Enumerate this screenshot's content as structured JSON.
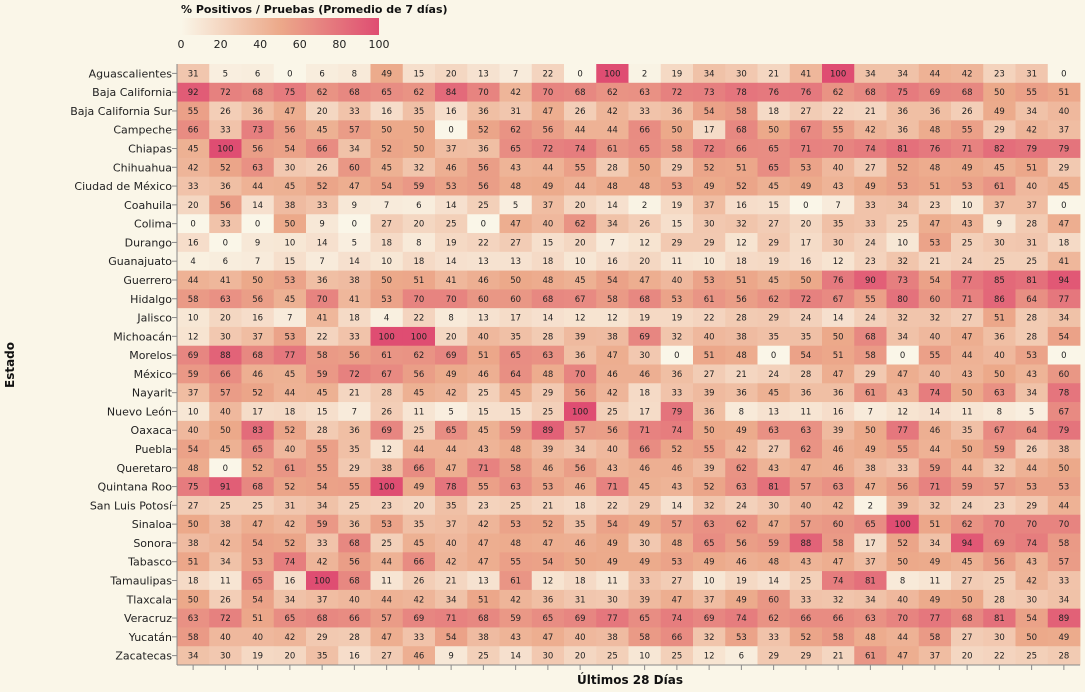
{
  "chart_data": {
    "type": "heatmap",
    "legend": {
      "title": "% Positivos / Pruebas (Promedio de 7 días)",
      "ticks": [
        0,
        20,
        40,
        60,
        80,
        100
      ],
      "domain": [
        0,
        100
      ],
      "color_low": "#faf6e8",
      "color_mid": "#eca98a",
      "color_high": "#df4d72",
      "placement": "top-left"
    },
    "ylabel": "Estado",
    "xlabel": "Últimos 28 Días",
    "grid": false,
    "rows": [
      "Aguascalientes",
      "Baja California",
      "Baja California Sur",
      "Campeche",
      "Chiapas",
      "Chihuahua",
      "Ciudad de México",
      "Coahuila",
      "Colima",
      "Durango",
      "Guanajuato",
      "Guerrero",
      "Hidalgo",
      "Jalisco",
      "Michoacán",
      "Morelos",
      "México",
      "Nayarit",
      "Nuevo León",
      "Oaxaca",
      "Puebla",
      "Queretaro",
      "Quintana Roo",
      "San Luis Potosí",
      "Sinaloa",
      "Sonora",
      "Tabasco",
      "Tamaulipas",
      "Tlaxcala",
      "Veracruz",
      "Yucatán",
      "Zacatecas"
    ],
    "values": [
      [
        31,
        5,
        6,
        0,
        6,
        8,
        49,
        15,
        20,
        13,
        7,
        22,
        0,
        100,
        2,
        19,
        34,
        30,
        21,
        41,
        100,
        34,
        34,
        44,
        42,
        23,
        31,
        0
      ],
      [
        92,
        72,
        68,
        75,
        62,
        68,
        65,
        62,
        84,
        70,
        42,
        70,
        68,
        62,
        63,
        72,
        73,
        78,
        76,
        76,
        62,
        68,
        75,
        69,
        68,
        50,
        55,
        51
      ],
      [
        55,
        26,
        36,
        47,
        20,
        33,
        16,
        35,
        16,
        36,
        31,
        47,
        26,
        42,
        33,
        36,
        54,
        58,
        18,
        27,
        22,
        21,
        36,
        36,
        26,
        49,
        34,
        40
      ],
      [
        66,
        33,
        73,
        56,
        45,
        57,
        50,
        50,
        0,
        52,
        62,
        56,
        44,
        44,
        66,
        50,
        17,
        68,
        50,
        67,
        55,
        42,
        36,
        48,
        55,
        29,
        42,
        37
      ],
      [
        45,
        100,
        56,
        54,
        66,
        34,
        52,
        50,
        37,
        36,
        65,
        72,
        74,
        61,
        65,
        58,
        72,
        66,
        65,
        71,
        70,
        74,
        81,
        76,
        71,
        82,
        79,
        79
      ],
      [
        42,
        52,
        63,
        30,
        26,
        60,
        45,
        32,
        46,
        56,
        43,
        44,
        55,
        28,
        50,
        29,
        52,
        51,
        65,
        53,
        40,
        27,
        52,
        48,
        49,
        45,
        51,
        29
      ],
      [
        33,
        36,
        44,
        45,
        52,
        47,
        54,
        59,
        53,
        56,
        48,
        49,
        44,
        48,
        48,
        53,
        49,
        52,
        45,
        49,
        43,
        49,
        53,
        51,
        53,
        61,
        40,
        45
      ],
      [
        20,
        56,
        14,
        38,
        33,
        9,
        7,
        6,
        14,
        25,
        5,
        37,
        20,
        14,
        2,
        19,
        37,
        16,
        15,
        0,
        7,
        33,
        34,
        23,
        10,
        37,
        37,
        0
      ],
      [
        0,
        33,
        0,
        50,
        9,
        0,
        27,
        20,
        25,
        0,
        47,
        40,
        62,
        34,
        26,
        15,
        30,
        32,
        27,
        20,
        35,
        33,
        25,
        47,
        43,
        9,
        28,
        47
      ],
      [
        16,
        0,
        9,
        10,
        14,
        5,
        18,
        8,
        19,
        22,
        27,
        15,
        20,
        7,
        12,
        29,
        29,
        12,
        29,
        17,
        30,
        24,
        10,
        53,
        25,
        30,
        31,
        18
      ],
      [
        4,
        6,
        7,
        15,
        7,
        14,
        10,
        18,
        14,
        13,
        13,
        18,
        10,
        16,
        20,
        11,
        10,
        18,
        19,
        16,
        12,
        23,
        32,
        21,
        24,
        25,
        25,
        41
      ],
      [
        44,
        41,
        50,
        53,
        36,
        38,
        50,
        51,
        41,
        46,
        50,
        48,
        45,
        54,
        47,
        40,
        53,
        51,
        45,
        50,
        76,
        90,
        73,
        54,
        77,
        85,
        81,
        94
      ],
      [
        58,
        63,
        56,
        45,
        70,
        41,
        53,
        70,
        70,
        60,
        60,
        68,
        67,
        58,
        68,
        53,
        61,
        56,
        62,
        72,
        67,
        55,
        80,
        60,
        71,
        86,
        64,
        77
      ],
      [
        10,
        20,
        16,
        7,
        41,
        18,
        4,
        22,
        8,
        13,
        17,
        14,
        12,
        12,
        19,
        19,
        22,
        28,
        29,
        24,
        14,
        24,
        32,
        32,
        27,
        51,
        28,
        34
      ],
      [
        12,
        30,
        37,
        53,
        22,
        33,
        100,
        100,
        20,
        40,
        35,
        28,
        39,
        38,
        69,
        32,
        40,
        38,
        35,
        35,
        50,
        68,
        34,
        40,
        47,
        36,
        28,
        54
      ],
      [
        69,
        88,
        68,
        77,
        58,
        56,
        61,
        62,
        69,
        51,
        65,
        63,
        36,
        47,
        30,
        0,
        51,
        48,
        0,
        54,
        51,
        58,
        0,
        55,
        44,
        40,
        53,
        0
      ],
      [
        59,
        66,
        46,
        45,
        59,
        72,
        67,
        56,
        49,
        46,
        64,
        48,
        70,
        46,
        46,
        36,
        27,
        21,
        24,
        28,
        47,
        29,
        47,
        40,
        43,
        50,
        43,
        60
      ],
      [
        37,
        57,
        52,
        44,
        45,
        21,
        28,
        45,
        42,
        25,
        45,
        29,
        56,
        42,
        18,
        33,
        39,
        36,
        45,
        36,
        36,
        61,
        43,
        74,
        50,
        63,
        34,
        78
      ],
      [
        10,
        40,
        17,
        18,
        15,
        7,
        26,
        11,
        5,
        15,
        15,
        25,
        100,
        25,
        17,
        79,
        36,
        8,
        13,
        11,
        16,
        7,
        12,
        14,
        11,
        8,
        5,
        67
      ],
      [
        40,
        50,
        83,
        52,
        28,
        36,
        69,
        25,
        65,
        45,
        59,
        89,
        57,
        56,
        71,
        74,
        50,
        49,
        63,
        63,
        39,
        50,
        77,
        46,
        35,
        67,
        64,
        79
      ],
      [
        54,
        45,
        65,
        40,
        55,
        35,
        12,
        44,
        44,
        43,
        48,
        39,
        34,
        40,
        66,
        52,
        55,
        42,
        27,
        62,
        46,
        49,
        55,
        44,
        50,
        59,
        26,
        38
      ],
      [
        48,
        0,
        52,
        61,
        55,
        29,
        38,
        66,
        47,
        71,
        58,
        46,
        56,
        43,
        46,
        46,
        39,
        62,
        43,
        47,
        46,
        38,
        33,
        59,
        44,
        32,
        44,
        50
      ],
      [
        75,
        91,
        68,
        52,
        54,
        55,
        100,
        49,
        78,
        55,
        63,
        53,
        46,
        71,
        45,
        43,
        52,
        63,
        81,
        57,
        63,
        47,
        56,
        71,
        59,
        57,
        53,
        53
      ],
      [
        27,
        25,
        25,
        31,
        34,
        25,
        23,
        20,
        35,
        23,
        25,
        21,
        18,
        22,
        29,
        14,
        32,
        24,
        30,
        40,
        42,
        2,
        39,
        32,
        24,
        23,
        29,
        44
      ],
      [
        50,
        38,
        47,
        42,
        59,
        36,
        53,
        35,
        37,
        42,
        53,
        52,
        35,
        54,
        49,
        57,
        63,
        62,
        47,
        57,
        60,
        65,
        100,
        51,
        62,
        70,
        70,
        70
      ],
      [
        38,
        42,
        54,
        52,
        33,
        68,
        25,
        45,
        40,
        47,
        48,
        47,
        46,
        49,
        30,
        48,
        65,
        56,
        59,
        88,
        58,
        17,
        52,
        34,
        94,
        69,
        74,
        58
      ],
      [
        51,
        34,
        53,
        74,
        42,
        56,
        44,
        66,
        42,
        47,
        55,
        54,
        50,
        49,
        49,
        53,
        49,
        46,
        48,
        43,
        47,
        37,
        50,
        49,
        45,
        56,
        43,
        57
      ],
      [
        18,
        11,
        65,
        16,
        100,
        68,
        11,
        26,
        21,
        13,
        61,
        12,
        18,
        11,
        33,
        27,
        10,
        19,
        14,
        25,
        74,
        81,
        8,
        11,
        27,
        25,
        42,
        33
      ],
      [
        50,
        26,
        54,
        34,
        37,
        40,
        44,
        42,
        34,
        51,
        42,
        36,
        31,
        30,
        39,
        47,
        37,
        49,
        60,
        33,
        32,
        34,
        40,
        49,
        50,
        28,
        30,
        34
      ],
      [
        63,
        72,
        51,
        65,
        68,
        66,
        57,
        69,
        71,
        68,
        59,
        65,
        69,
        77,
        65,
        74,
        69,
        74,
        62,
        66,
        66,
        63,
        70,
        77,
        68,
        81,
        54,
        89
      ],
      [
        58,
        40,
        40,
        42,
        29,
        28,
        47,
        33,
        54,
        38,
        43,
        47,
        40,
        38,
        58,
        66,
        32,
        53,
        33,
        52,
        58,
        48,
        44,
        58,
        27,
        30,
        50,
        49
      ],
      [
        34,
        30,
        19,
        20,
        35,
        16,
        27,
        46,
        9,
        25,
        14,
        30,
        20,
        25,
        10,
        25,
        12,
        6,
        29,
        29,
        21,
        61,
        47,
        37,
        20,
        22,
        25,
        28
      ]
    ]
  }
}
